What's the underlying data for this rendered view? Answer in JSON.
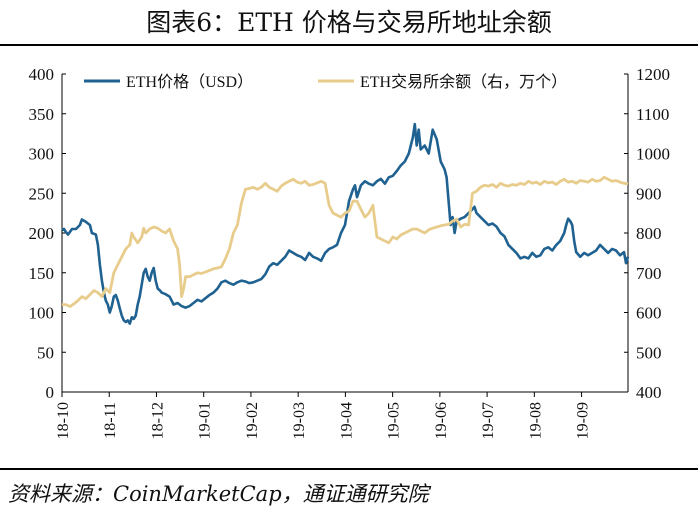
{
  "title": "图表6：ETH 价格与交易所地址余额",
  "source": "资料来源：CoinMarketCap，通证通研究院",
  "chart_data": {
    "type": "line",
    "x_tick_labels": [
      "18-10",
      "18-11",
      "18-12",
      "19-01",
      "19-02",
      "19-03",
      "19-04",
      "19-05",
      "19-06",
      "19-07",
      "19-08",
      "19-09"
    ],
    "left_axis": {
      "ylim": [
        0,
        400
      ],
      "ticks": [
        0,
        50,
        100,
        150,
        200,
        250,
        300,
        350,
        400
      ]
    },
    "right_axis": {
      "ylim": [
        400,
        1200
      ],
      "ticks": [
        400,
        500,
        600,
        700,
        800,
        900,
        1000,
        1100,
        1200
      ]
    },
    "legend_position": "top",
    "series": [
      {
        "name": "ETH价格（USD）",
        "color": "#1f6291",
        "axis": "left",
        "points": [
          [
            0,
            204
          ],
          [
            1,
            205
          ],
          [
            2,
            201
          ],
          [
            3,
            198
          ],
          [
            5,
            205
          ],
          [
            7,
            205
          ],
          [
            9,
            210
          ],
          [
            10,
            217
          ],
          [
            12,
            214
          ],
          [
            14,
            210
          ],
          [
            15,
            200
          ],
          [
            17,
            198
          ],
          [
            18,
            185
          ],
          [
            19,
            160
          ],
          [
            20,
            140
          ],
          [
            21,
            125
          ],
          [
            22,
            115
          ],
          [
            23,
            110
          ],
          [
            24,
            100
          ],
          [
            25,
            108
          ],
          [
            26,
            120
          ],
          [
            27,
            122
          ],
          [
            28,
            115
          ],
          [
            29,
            105
          ],
          [
            30,
            96
          ],
          [
            31,
            90
          ],
          [
            32,
            88
          ],
          [
            33,
            90
          ],
          [
            34,
            86
          ],
          [
            35,
            94
          ],
          [
            36,
            92
          ],
          [
            37,
            96
          ],
          [
            38,
            110
          ],
          [
            39,
            120
          ],
          [
            40,
            135
          ],
          [
            41,
            150
          ],
          [
            42,
            155
          ],
          [
            43,
            145
          ],
          [
            44,
            140
          ],
          [
            45,
            150
          ],
          [
            46,
            156
          ],
          [
            47,
            140
          ],
          [
            48,
            130
          ],
          [
            49,
            128
          ],
          [
            50,
            125
          ],
          [
            52,
            123
          ],
          [
            54,
            120
          ],
          [
            56,
            110
          ],
          [
            58,
            112
          ],
          [
            60,
            108
          ],
          [
            62,
            106
          ],
          [
            64,
            108
          ],
          [
            66,
            112
          ],
          [
            68,
            116
          ],
          [
            70,
            114
          ],
          [
            72,
            118
          ],
          [
            74,
            122
          ],
          [
            76,
            125
          ],
          [
            78,
            130
          ],
          [
            80,
            138
          ],
          [
            82,
            140
          ],
          [
            84,
            137
          ],
          [
            86,
            135
          ],
          [
            88,
            138
          ],
          [
            90,
            140
          ],
          [
            92,
            139
          ],
          [
            94,
            137
          ],
          [
            96,
            138
          ],
          [
            98,
            140
          ],
          [
            100,
            142
          ],
          [
            102,
            148
          ],
          [
            104,
            158
          ],
          [
            106,
            162
          ],
          [
            108,
            160
          ],
          [
            110,
            165
          ],
          [
            112,
            170
          ],
          [
            114,
            178
          ],
          [
            116,
            175
          ],
          [
            118,
            172
          ],
          [
            120,
            170
          ],
          [
            122,
            166
          ],
          [
            124,
            175
          ],
          [
            126,
            170
          ],
          [
            128,
            168
          ],
          [
            130,
            165
          ],
          [
            132,
            175
          ],
          [
            134,
            180
          ],
          [
            136,
            182
          ],
          [
            138,
            185
          ],
          [
            140,
            200
          ],
          [
            142,
            210
          ],
          [
            144,
            240
          ],
          [
            146,
            255
          ],
          [
            147,
            260
          ],
          [
            148,
            245
          ],
          [
            150,
            260
          ],
          [
            152,
            265
          ],
          [
            154,
            262
          ],
          [
            156,
            260
          ],
          [
            158,
            265
          ],
          [
            160,
            268
          ],
          [
            162,
            262
          ],
          [
            164,
            270
          ],
          [
            166,
            272
          ],
          [
            168,
            278
          ],
          [
            170,
            285
          ],
          [
            172,
            290
          ],
          [
            174,
            300
          ],
          [
            176,
            320
          ],
          [
            177,
            337
          ],
          [
            178,
            310
          ],
          [
            179,
            330
          ],
          [
            180,
            305
          ],
          [
            182,
            310
          ],
          [
            184,
            300
          ],
          [
            186,
            330
          ],
          [
            188,
            318
          ],
          [
            190,
            290
          ],
          [
            192,
            280
          ],
          [
            193,
            270
          ],
          [
            194,
            240
          ],
          [
            195,
            210
          ],
          [
            196,
            220
          ],
          [
            197,
            200
          ],
          [
            198,
            215
          ],
          [
            200,
            218
          ],
          [
            202,
            220
          ],
          [
            204,
            225
          ],
          [
            206,
            230
          ],
          [
            207,
            233
          ],
          [
            208,
            225
          ],
          [
            210,
            220
          ],
          [
            212,
            215
          ],
          [
            214,
            210
          ],
          [
            216,
            212
          ],
          [
            218,
            208
          ],
          [
            220,
            200
          ],
          [
            222,
            196
          ],
          [
            224,
            185
          ],
          [
            226,
            180
          ],
          [
            228,
            175
          ],
          [
            230,
            168
          ],
          [
            232,
            170
          ],
          [
            234,
            168
          ],
          [
            236,
            175
          ],
          [
            238,
            170
          ],
          [
            240,
            172
          ],
          [
            242,
            180
          ],
          [
            244,
            182
          ],
          [
            246,
            178
          ],
          [
            248,
            185
          ],
          [
            250,
            190
          ],
          [
            252,
            200
          ],
          [
            253,
            210
          ],
          [
            254,
            218
          ],
          [
            255,
            215
          ],
          [
            256,
            210
          ],
          [
            257,
            190
          ],
          [
            258,
            176
          ],
          [
            260,
            170
          ],
          [
            262,
            175
          ],
          [
            264,
            172
          ],
          [
            266,
            175
          ],
          [
            268,
            178
          ],
          [
            270,
            185
          ],
          [
            272,
            180
          ],
          [
            274,
            175
          ],
          [
            276,
            180
          ],
          [
            278,
            178
          ],
          [
            280,
            172
          ],
          [
            282,
            176
          ],
          [
            283,
            162
          ],
          [
            284,
            170
          ]
        ]
      },
      {
        "name": "ETH交易所余额（右，万个）",
        "color": "#e8cc8c",
        "axis": "right",
        "points": [
          [
            0,
            620
          ],
          [
            2,
            620
          ],
          [
            4,
            615
          ],
          [
            6,
            622
          ],
          [
            8,
            630
          ],
          [
            10,
            640
          ],
          [
            12,
            635
          ],
          [
            14,
            645
          ],
          [
            16,
            655
          ],
          [
            18,
            650
          ],
          [
            20,
            640
          ],
          [
            22,
            660
          ],
          [
            24,
            650
          ],
          [
            26,
            700
          ],
          [
            28,
            720
          ],
          [
            30,
            740
          ],
          [
            32,
            760
          ],
          [
            34,
            770
          ],
          [
            35,
            800
          ],
          [
            36,
            790
          ],
          [
            38,
            775
          ],
          [
            40,
            790
          ],
          [
            41,
            812
          ],
          [
            42,
            800
          ],
          [
            44,
            810
          ],
          [
            46,
            815
          ],
          [
            48,
            812
          ],
          [
            50,
            805
          ],
          [
            52,
            800
          ],
          [
            54,
            810
          ],
          [
            56,
            780
          ],
          [
            58,
            760
          ],
          [
            59,
            720
          ],
          [
            60,
            640
          ],
          [
            61,
            660
          ],
          [
            62,
            690
          ],
          [
            64,
            690
          ],
          [
            66,
            695
          ],
          [
            68,
            700
          ],
          [
            70,
            698
          ],
          [
            72,
            702
          ],
          [
            74,
            706
          ],
          [
            76,
            710
          ],
          [
            78,
            712
          ],
          [
            80,
            715
          ],
          [
            82,
            735
          ],
          [
            84,
            760
          ],
          [
            86,
            800
          ],
          [
            88,
            820
          ],
          [
            90,
            875
          ],
          [
            92,
            910
          ],
          [
            94,
            912
          ],
          [
            96,
            915
          ],
          [
            98,
            910
          ],
          [
            100,
            915
          ],
          [
            102,
            925
          ],
          [
            104,
            915
          ],
          [
            106,
            910
          ],
          [
            108,
            905
          ],
          [
            110,
            918
          ],
          [
            112,
            925
          ],
          [
            114,
            930
          ],
          [
            116,
            935
          ],
          [
            118,
            928
          ],
          [
            120,
            925
          ],
          [
            122,
            930
          ],
          [
            124,
            920
          ],
          [
            126,
            922
          ],
          [
            128,
            926
          ],
          [
            130,
            930
          ],
          [
            132,
            925
          ],
          [
            134,
            870
          ],
          [
            136,
            850
          ],
          [
            138,
            845
          ],
          [
            140,
            840
          ],
          [
            142,
            850
          ],
          [
            144,
            855
          ],
          [
            146,
            880
          ],
          [
            148,
            880
          ],
          [
            150,
            860
          ],
          [
            152,
            840
          ],
          [
            154,
            850
          ],
          [
            156,
            870
          ],
          [
            158,
            790
          ],
          [
            160,
            785
          ],
          [
            162,
            780
          ],
          [
            164,
            775
          ],
          [
            166,
            790
          ],
          [
            168,
            785
          ],
          [
            170,
            795
          ],
          [
            172,
            800
          ],
          [
            174,
            805
          ],
          [
            176,
            810
          ],
          [
            178,
            810
          ],
          [
            180,
            805
          ],
          [
            182,
            800
          ],
          [
            184,
            808
          ],
          [
            186,
            812
          ],
          [
            188,
            815
          ],
          [
            190,
            818
          ],
          [
            192,
            820
          ],
          [
            194,
            822
          ],
          [
            196,
            830
          ],
          [
            198,
            835
          ],
          [
            200,
            815
          ],
          [
            202,
            822
          ],
          [
            204,
            820
          ],
          [
            206,
            900
          ],
          [
            208,
            905
          ],
          [
            210,
            915
          ],
          [
            212,
            920
          ],
          [
            214,
            918
          ],
          [
            216,
            922
          ],
          [
            218,
            915
          ],
          [
            220,
            925
          ],
          [
            222,
            920
          ],
          [
            224,
            918
          ],
          [
            226,
            922
          ],
          [
            228,
            920
          ],
          [
            230,
            925
          ],
          [
            232,
            922
          ],
          [
            234,
            930
          ],
          [
            236,
            925
          ],
          [
            238,
            928
          ],
          [
            240,
            922
          ],
          [
            242,
            930
          ],
          [
            244,
            926
          ],
          [
            246,
            928
          ],
          [
            248,
            922
          ],
          [
            250,
            930
          ],
          [
            252,
            935
          ],
          [
            254,
            928
          ],
          [
            256,
            930
          ],
          [
            258,
            925
          ],
          [
            260,
            932
          ],
          [
            262,
            930
          ],
          [
            264,
            928
          ],
          [
            266,
            935
          ],
          [
            268,
            930
          ],
          [
            270,
            932
          ],
          [
            272,
            940
          ],
          [
            274,
            935
          ],
          [
            276,
            930
          ],
          [
            278,
            932
          ],
          [
            280,
            928
          ],
          [
            282,
            925
          ],
          [
            284,
            924
          ]
        ]
      }
    ],
    "x_max": 284
  }
}
